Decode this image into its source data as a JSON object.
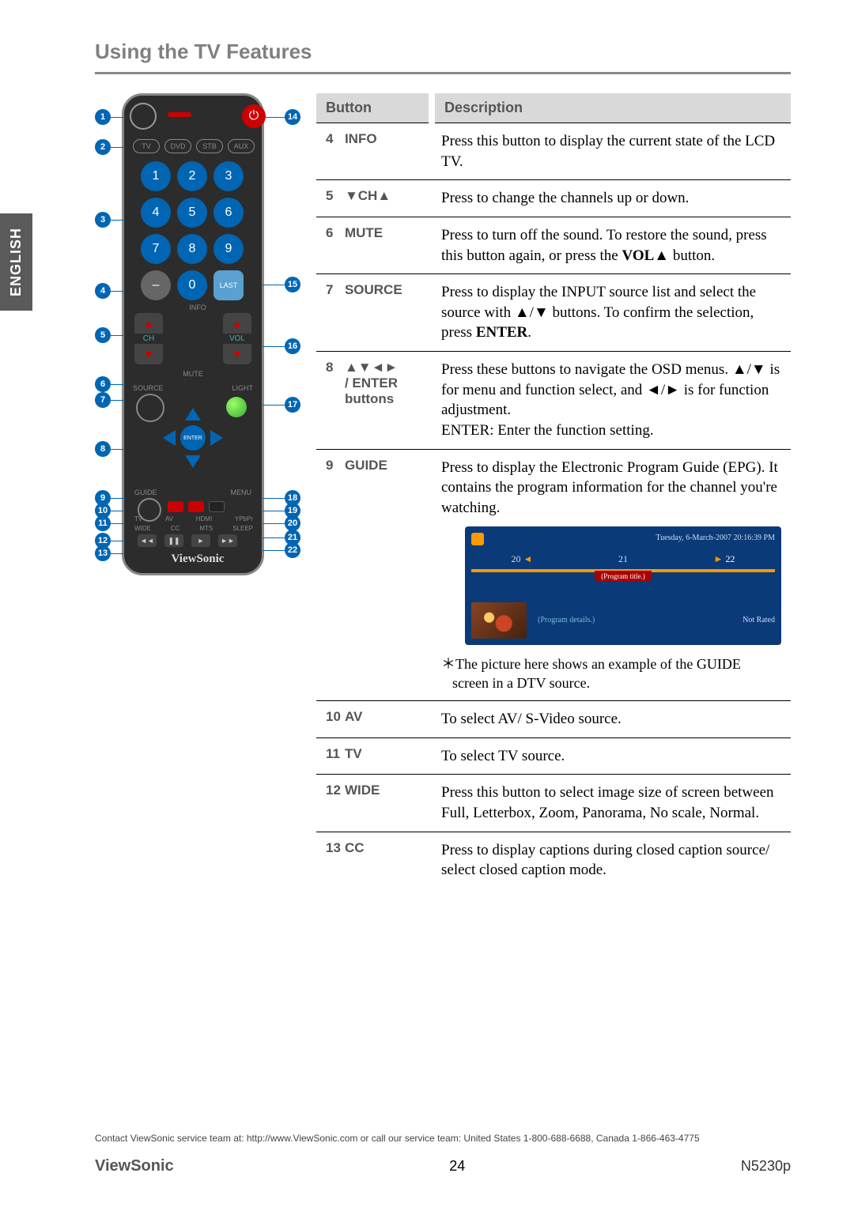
{
  "lang_tab": "ENGLISH",
  "section_title": "Using the TV Features",
  "remote": {
    "modes": [
      "TV",
      "DVD",
      "STB",
      "AUX"
    ],
    "nums": [
      "1",
      "2",
      "3",
      "4",
      "5",
      "6",
      "7",
      "8",
      "9"
    ],
    "minus": "–",
    "zero": "0",
    "last": "LAST",
    "info": "INFO",
    "ch": "CH",
    "vol": "VOL",
    "mute": "MUTE",
    "source": "SOURCE",
    "light": "LIGHT",
    "enter": "ENTER",
    "guide": "GUIDE",
    "menu": "MENU",
    "bot_row1": [
      "TV",
      "AV",
      "HDMI",
      "YPbPr"
    ],
    "bot_row2": [
      "WIDE",
      "CC",
      "MTS",
      "SLEEP"
    ],
    "play": [
      "◄◄",
      "❚❚",
      "►",
      "►►"
    ],
    "logo": "ViewSonic",
    "callouts_left": [
      "1",
      "2",
      "3",
      "4",
      "5",
      "6",
      "7",
      "8",
      "9",
      "10",
      "11",
      "12",
      "13"
    ],
    "callouts_right": [
      "14",
      "15",
      "16",
      "17",
      "18",
      "19",
      "20",
      "21",
      "22"
    ]
  },
  "table": {
    "head_button": "Button",
    "head_desc": "Description",
    "rows": [
      {
        "n": "4",
        "name": "INFO",
        "desc": "Press this button to display the current state of the LCD TV."
      },
      {
        "n": "5",
        "name": "▼CH▲",
        "desc": "Press to change the channels up or down."
      },
      {
        "n": "6",
        "name": "MUTE",
        "desc": "Press to turn off the sound. To restore the sound, press this button again, or press the <b>VOL▲</b> button."
      },
      {
        "n": "7",
        "name": "SOURCE",
        "desc": "Press to display the INPUT source list and select the source with ▲/▼ buttons. To confirm the selection, press <b>ENTER</b>."
      },
      {
        "n": "8",
        "name": "▲▼◄►<br>/ ENTER<br>buttons",
        "desc": "Press these buttons to navigate the OSD menus. ▲/▼ is for menu and function select, and ◄/► is for function adjustment.<br>ENTER: Enter the function setting."
      },
      {
        "n": "9",
        "name": "GUIDE",
        "desc_top": "Press to display the Electronic Program Guide (EPG). It contains the program information for the channel you're watching.",
        "note": "＊The picture here shows an example of the GUIDE",
        "note2": "screen in a DTV source."
      },
      {
        "n": "10",
        "name": "AV",
        "desc": "To select AV/ S-Video source."
      },
      {
        "n": "11",
        "name": "TV",
        "desc": "To select TV source."
      },
      {
        "n": "12",
        "name": "WIDE",
        "desc": "Press this button to select image size of screen between Full, Letterbox, Zoom, Panorama, No scale, Normal."
      },
      {
        "n": "13",
        "name": "CC",
        "desc": "Press to display captions during closed caption source/ select closed caption mode."
      }
    ]
  },
  "epg": {
    "datetime": "Tuesday, 6-March-2007 20:16:39 PM",
    "tabs": [
      "20",
      "21",
      "22"
    ],
    "prog_title": "(Program title.)",
    "details": "(Program details.)",
    "rating": "Not Rated"
  },
  "footer": {
    "contact": "Contact ViewSonic service team at: http://www.ViewSonic.com or call our service team: United States 1-800-688-6688, Canada 1-866-463-4775",
    "brand": "ViewSonic",
    "page": "24",
    "model": "N5230p"
  }
}
